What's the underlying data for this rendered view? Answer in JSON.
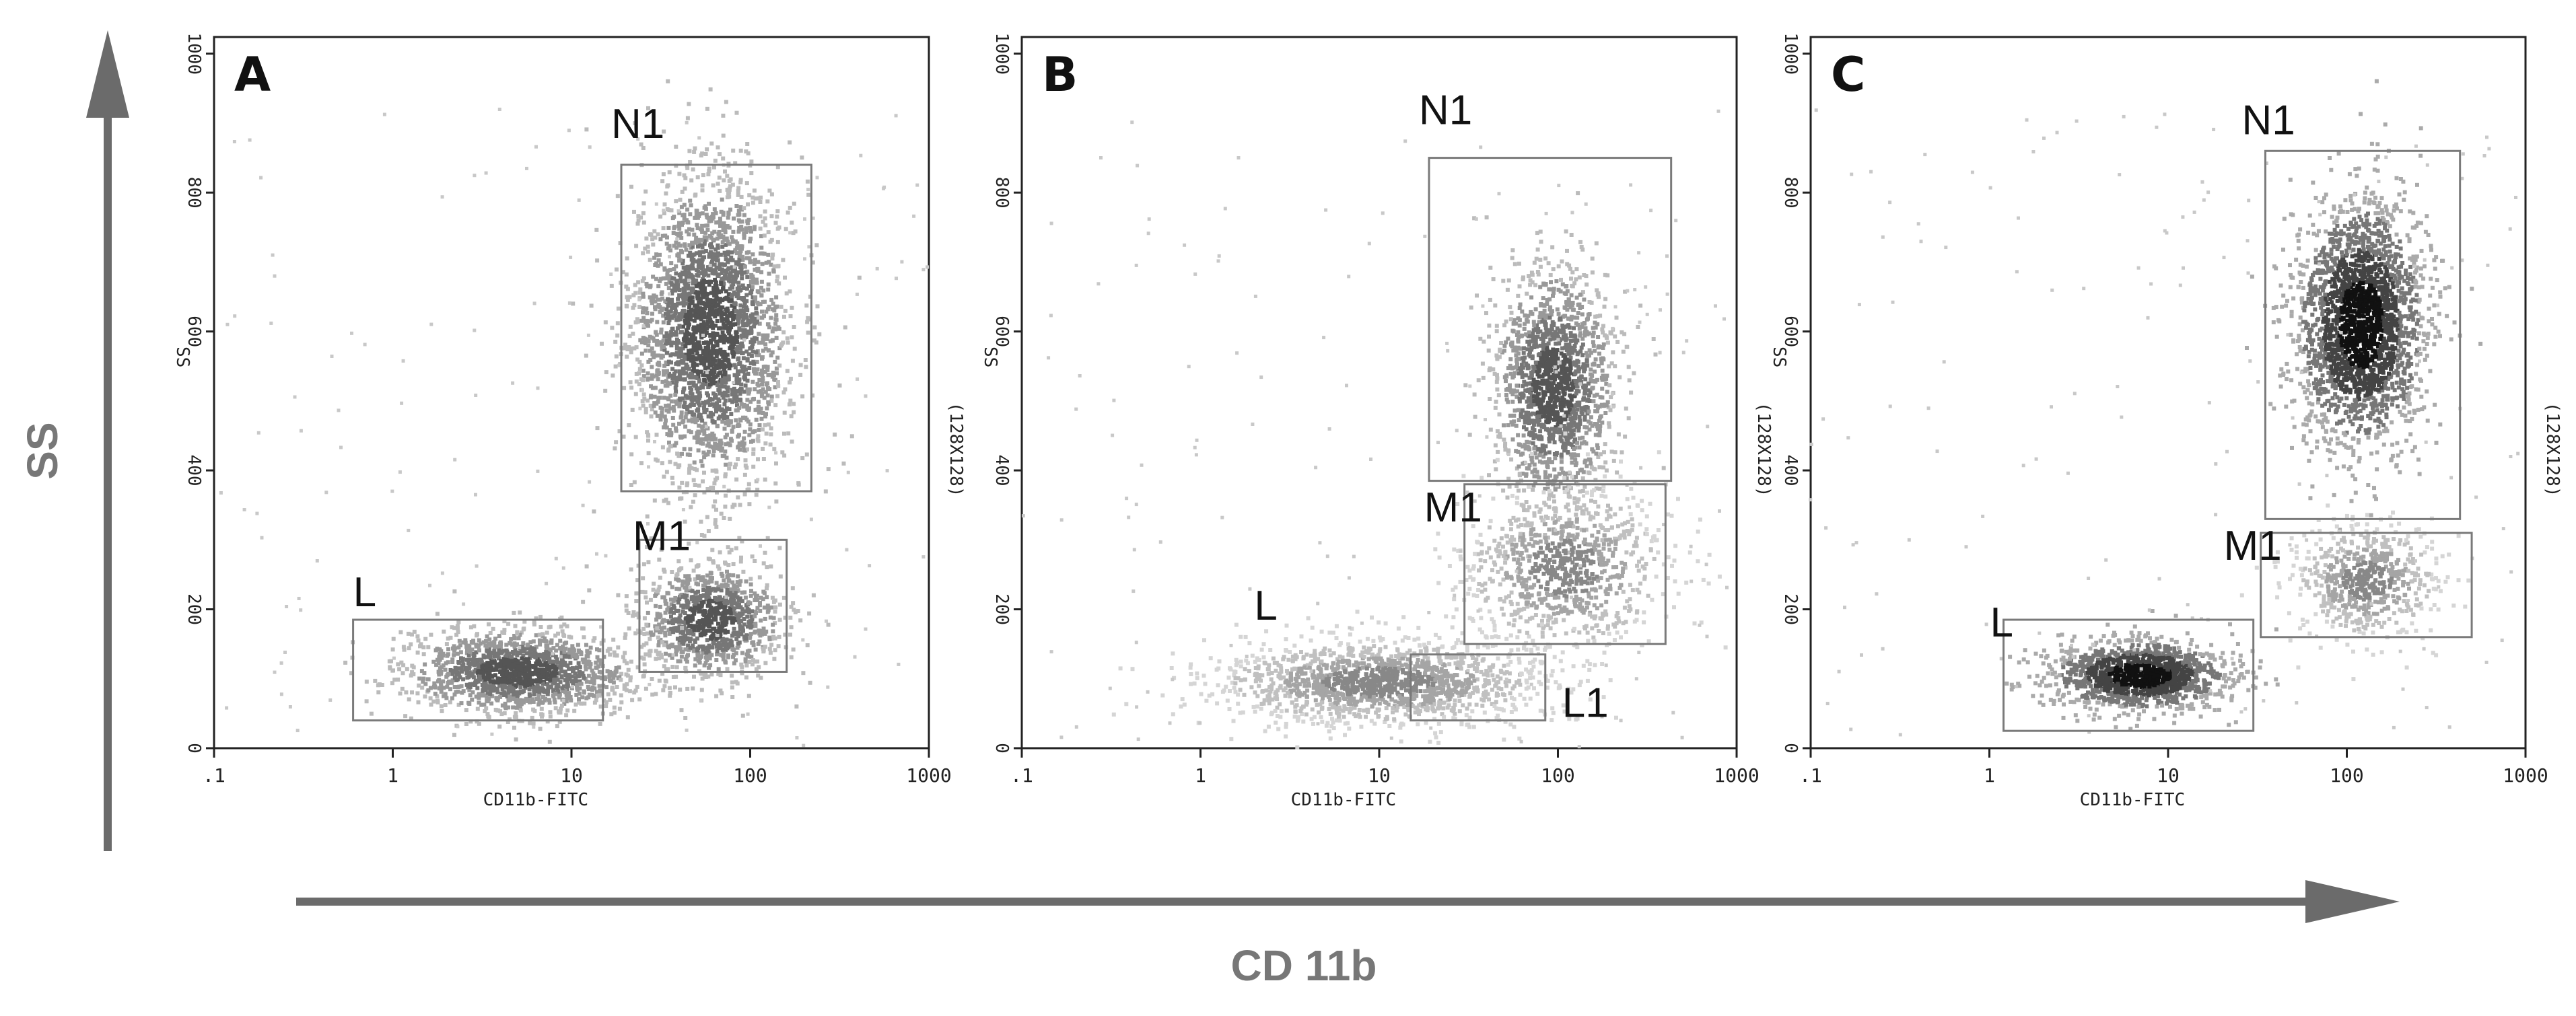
{
  "figure": {
    "y_axis_label": "SS",
    "x_axis_label": "CD 11b",
    "color_axis_arrow": "#6b6b6b"
  },
  "chart_data": [
    {
      "type": "scatter",
      "panel_label": "A",
      "xlabel": "CD11b-FITC",
      "ylabel": "SS",
      "right_label": "(128X128)",
      "x_scale": "log",
      "xlim": [
        0.1,
        1000
      ],
      "ylim": [
        0,
        1024
      ],
      "x_ticks": [
        ".1",
        "1",
        "10",
        "100",
        "1000"
      ],
      "y_ticks": [
        "0",
        "200",
        "400",
        "600",
        "800",
        "1000"
      ],
      "gates": [
        {
          "name": "N1",
          "x_range": [
            19,
            220
          ],
          "y_range": [
            370,
            840
          ]
        },
        {
          "name": "M1",
          "x_range": [
            24,
            160
          ],
          "y_range": [
            110,
            300
          ]
        },
        {
          "name": "L",
          "x_range": [
            0.6,
            15
          ],
          "y_range": [
            40,
            185
          ]
        }
      ],
      "populations": [
        {
          "name": "N1",
          "x_center": 60,
          "y_center": 600,
          "x_spread_log": 0.22,
          "y_spread": 110,
          "count": 2600,
          "intensity": "medium"
        },
        {
          "name": "M1",
          "x_center": 60,
          "y_center": 185,
          "x_spread_log": 0.2,
          "y_spread": 40,
          "count": 1000,
          "intensity": "medium"
        },
        {
          "name": "L",
          "x_center": 5,
          "y_center": 110,
          "x_spread_log": 0.32,
          "y_spread": 30,
          "count": 1400,
          "intensity": "medium"
        }
      ]
    },
    {
      "type": "scatter",
      "panel_label": "B",
      "xlabel": "CD11b-FITC",
      "ylabel": "SS",
      "right_label": "(128X128)",
      "x_scale": "log",
      "xlim": [
        0.1,
        1000
      ],
      "ylim": [
        0,
        1024
      ],
      "x_ticks": [
        ".1",
        "1",
        "10",
        "100",
        "1000"
      ],
      "y_ticks": [
        "0",
        "200",
        "400",
        "600",
        "800",
        "1000"
      ],
      "gates": [
        {
          "name": "N1",
          "x_range": [
            19,
            430
          ],
          "y_range": [
            385,
            850
          ]
        },
        {
          "name": "M1",
          "x_range": [
            30,
            400
          ],
          "y_range": [
            150,
            380
          ]
        },
        {
          "name": "L1",
          "x_range": [
            15,
            85
          ],
          "y_range": [
            40,
            135
          ]
        },
        {
          "name": "L",
          "x_range": null,
          "y_range": null
        }
      ],
      "populations": [
        {
          "name": "N1",
          "x_center": 95,
          "y_center": 520,
          "x_spread_log": 0.17,
          "y_spread": 85,
          "count": 1500,
          "intensity": "medium"
        },
        {
          "name": "M1",
          "x_center": 110,
          "y_center": 260,
          "x_spread_log": 0.28,
          "y_spread": 60,
          "count": 900,
          "intensity": "light"
        },
        {
          "name": "L",
          "x_center": 10,
          "y_center": 95,
          "x_spread_log": 0.45,
          "y_spread": 30,
          "count": 1500,
          "intensity": "light"
        }
      ]
    },
    {
      "type": "scatter",
      "panel_label": "C",
      "xlabel": "CD11b-FITC",
      "ylabel": "SS",
      "right_label": "(128X128)",
      "x_scale": "log",
      "xlim": [
        0.1,
        1000
      ],
      "ylim": [
        0,
        1024
      ],
      "x_ticks": [
        ".1",
        "1",
        "10",
        "100",
        "1000"
      ],
      "y_ticks": [
        "0",
        "200",
        "400",
        "600",
        "800",
        "1000"
      ],
      "gates": [
        {
          "name": "N1",
          "x_range": [
            35,
            430
          ],
          "y_range": [
            330,
            860
          ]
        },
        {
          "name": "M1",
          "x_range": [
            33,
            500
          ],
          "y_range": [
            160,
            310
          ]
        },
        {
          "name": "L",
          "x_range": [
            1.2,
            30
          ],
          "y_range": [
            25,
            185
          ]
        }
      ],
      "populations": [
        {
          "name": "N1",
          "x_center": 120,
          "y_center": 610,
          "x_spread_log": 0.18,
          "y_spread": 90,
          "count": 2200,
          "intensity": "dark"
        },
        {
          "name": "M1",
          "x_center": 130,
          "y_center": 240,
          "x_spread_log": 0.2,
          "y_spread": 40,
          "count": 600,
          "intensity": "light"
        },
        {
          "name": "L",
          "x_center": 7,
          "y_center": 105,
          "x_spread_log": 0.25,
          "y_spread": 25,
          "count": 1300,
          "intensity": "dark"
        }
      ]
    }
  ]
}
